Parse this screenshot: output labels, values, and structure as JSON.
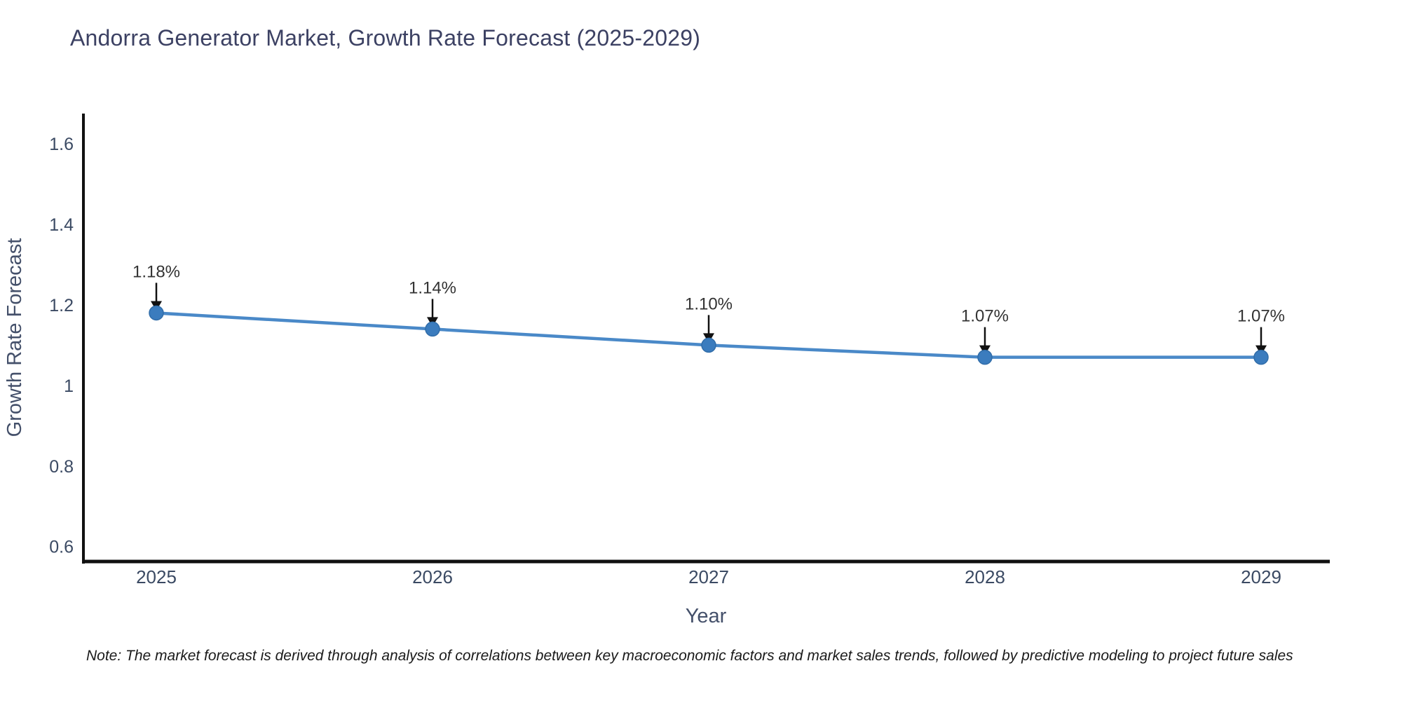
{
  "title": "Andorra Generator Market, Growth Rate Forecast (2025-2029)",
  "note": "Note: The market forecast is derived through analysis of correlations between key macroeconomic factors and market sales trends, followed by predictive modeling to project future sales",
  "colors": {
    "background": "#ffffff",
    "title_color": "#3c4163",
    "axis_color": "#111111",
    "tick_label_color": "#3b4a63",
    "axis_title_color": "#44506a",
    "line_color": "#4a89c8",
    "marker_color": "#3b7cbe",
    "marker_edge_color": "#316da9",
    "annotation_text_color": "#333333",
    "arrow_color": "#111111",
    "note_color": "#1a1a1a"
  },
  "chart_data": {
    "type": "line",
    "title": "Andorra Generator Market, Growth Rate Forecast (2025-2029)",
    "x": [
      "2025",
      "2026",
      "2027",
      "2028",
      "2029"
    ],
    "series": [
      {
        "name": "Growth Rate Forecast",
        "values": [
          1.18,
          1.14,
          1.1,
          1.07,
          1.07
        ]
      }
    ],
    "point_labels": [
      "1.18%",
      "1.14%",
      "1.10%",
      "1.07%",
      "1.07%"
    ],
    "xlabel": "Year",
    "ylabel": "Growth Rate Forecast",
    "ytick_values": [
      1.6,
      1.4,
      1.2,
      1,
      0.8,
      0.6
    ],
    "ytick_labels": [
      "1.6",
      "1.4",
      "1.2",
      "1",
      "0.8",
      "0.6"
    ],
    "ylim": [
      0.563,
      1.675
    ],
    "grid": false,
    "legend": "none"
  }
}
